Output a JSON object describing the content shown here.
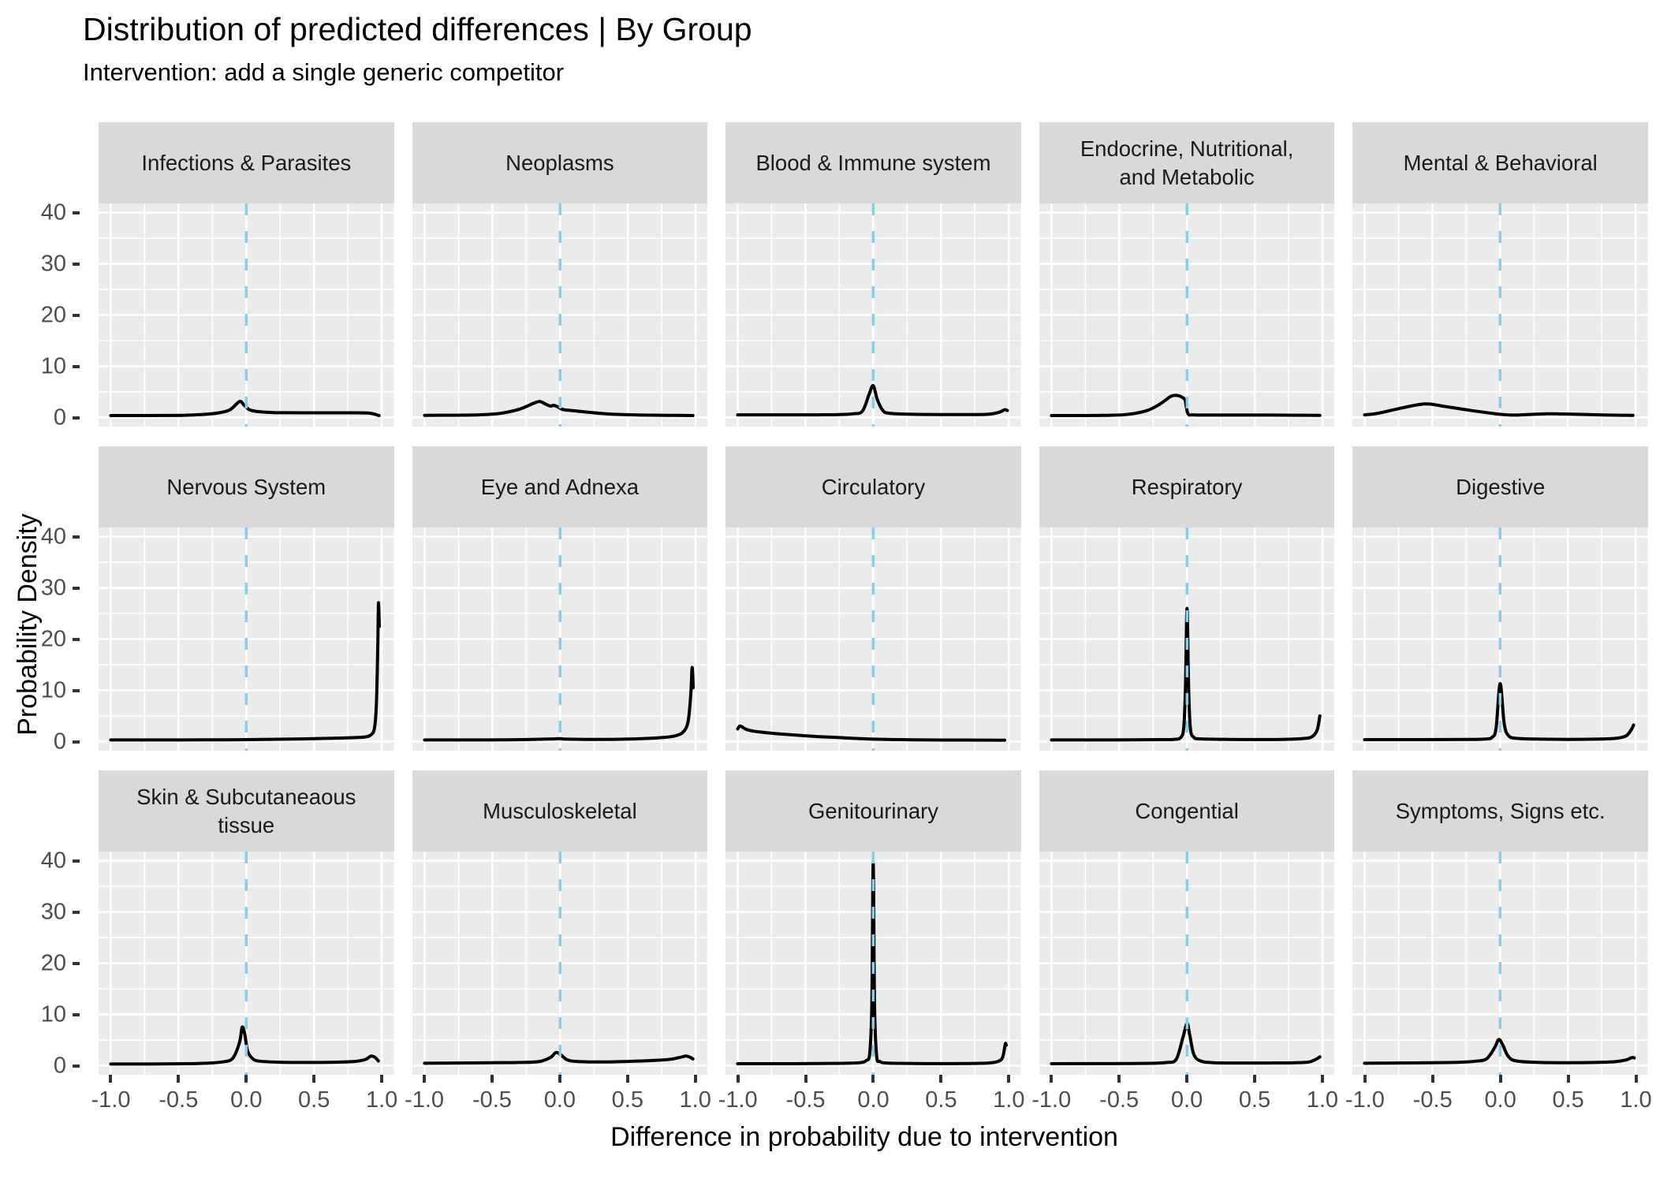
{
  "title": "Distribution of predicted differences | By Group",
  "subtitle": "Intervention: add a single generic competitor",
  "chart_data": {
    "type": "line",
    "title": "Distribution of predicted differences | By Group",
    "subtitle": "Intervention: add a single generic competitor",
    "xlabel": "Difference in probability due to intervention",
    "ylabel": "Probability Density",
    "panels_per_row": 5,
    "x_ticks": [
      "-1.0",
      "-0.5",
      "0.0",
      "0.5",
      "1.0"
    ],
    "x_tick_values": [
      -1.0,
      -0.5,
      0.0,
      0.5,
      1.0
    ],
    "y_ticks": [
      "0",
      "10",
      "20",
      "30",
      "40"
    ],
    "y_tick_values": [
      0,
      10,
      20,
      30,
      40
    ],
    "xlim": [
      -1.09,
      1.09
    ],
    "ylim": [
      -1.8,
      41.8
    ],
    "grid": true,
    "x_minor": [
      -0.75,
      -0.25,
      0.25,
      0.75
    ],
    "y_minor": [
      5,
      15,
      25,
      35
    ],
    "reference_line_x": 0,
    "legend": "none",
    "colors": {
      "density_line": "#000000",
      "reference_line": "#87CEEB",
      "panel_bg": "#EBEBEB",
      "strip_bg": "#D9D9D9",
      "gridline": "#FFFFFF",
      "axis_text": "#4D4D4D",
      "tick_mark": "#333333"
    },
    "facets": [
      {
        "label": "Infections & Parasites",
        "points": [
          [
            -1,
            0.35
          ],
          [
            -0.8,
            0.35
          ],
          [
            -0.6,
            0.38
          ],
          [
            -0.45,
            0.42
          ],
          [
            -0.3,
            0.6
          ],
          [
            -0.2,
            0.9
          ],
          [
            -0.12,
            1.5
          ],
          [
            -0.05,
            3.1
          ],
          [
            -0.02,
            2.5
          ],
          [
            0.02,
            1.55
          ],
          [
            0.08,
            1.15
          ],
          [
            0.2,
            0.95
          ],
          [
            0.4,
            0.9
          ],
          [
            0.6,
            0.9
          ],
          [
            0.8,
            0.9
          ],
          [
            0.9,
            0.85
          ],
          [
            0.95,
            0.6
          ],
          [
            0.98,
            0.35
          ]
        ]
      },
      {
        "label": "Neoplasms",
        "points": [
          [
            -1,
            0.4
          ],
          [
            -0.8,
            0.42
          ],
          [
            -0.6,
            0.5
          ],
          [
            -0.45,
            0.75
          ],
          [
            -0.3,
            1.6
          ],
          [
            -0.2,
            2.7
          ],
          [
            -0.15,
            3.1
          ],
          [
            -0.1,
            2.5
          ],
          [
            -0.07,
            2.2
          ],
          [
            -0.05,
            2.35
          ],
          [
            -0.02,
            2.1
          ],
          [
            0.02,
            1.55
          ],
          [
            0.1,
            1.3
          ],
          [
            0.25,
            0.9
          ],
          [
            0.4,
            0.6
          ],
          [
            0.6,
            0.45
          ],
          [
            0.8,
            0.4
          ],
          [
            0.98,
            0.35
          ]
        ]
      },
      {
        "label": "Blood & Immune system",
        "points": [
          [
            -1,
            0.5
          ],
          [
            -0.7,
            0.5
          ],
          [
            -0.4,
            0.5
          ],
          [
            -0.25,
            0.55
          ],
          [
            -0.15,
            0.7
          ],
          [
            -0.08,
            1.2
          ],
          [
            -0.03,
            4.5
          ],
          [
            0,
            6.2
          ],
          [
            0.03,
            3.5
          ],
          [
            0.07,
            1.4
          ],
          [
            0.12,
            0.8
          ],
          [
            0.3,
            0.6
          ],
          [
            0.5,
            0.55
          ],
          [
            0.7,
            0.55
          ],
          [
            0.85,
            0.6
          ],
          [
            0.93,
            1.0
          ],
          [
            0.97,
            1.5
          ],
          [
            0.99,
            1.35
          ]
        ]
      },
      {
        "label": "Endocrine, Nutritional,\nand Metabolic",
        "points": [
          [
            -1,
            0.35
          ],
          [
            -0.8,
            0.35
          ],
          [
            -0.6,
            0.4
          ],
          [
            -0.45,
            0.55
          ],
          [
            -0.3,
            1.3
          ],
          [
            -0.2,
            2.6
          ],
          [
            -0.12,
            4.1
          ],
          [
            -0.08,
            4.3
          ],
          [
            -0.04,
            4.0
          ],
          [
            -0.015,
            3.4
          ],
          [
            -0.005,
            2.0
          ],
          [
            0.01,
            0.6
          ],
          [
            0.05,
            0.48
          ],
          [
            0.2,
            0.45
          ],
          [
            0.5,
            0.45
          ],
          [
            0.8,
            0.42
          ],
          [
            0.98,
            0.4
          ]
        ]
      },
      {
        "label": "Mental & Behavioral",
        "points": [
          [
            -1,
            0.5
          ],
          [
            -0.9,
            0.8
          ],
          [
            -0.75,
            1.7
          ],
          [
            -0.6,
            2.5
          ],
          [
            -0.52,
            2.6
          ],
          [
            -0.4,
            2.1
          ],
          [
            -0.25,
            1.5
          ],
          [
            -0.12,
            1.0
          ],
          [
            0,
            0.6
          ],
          [
            0.1,
            0.45
          ],
          [
            0.25,
            0.6
          ],
          [
            0.35,
            0.7
          ],
          [
            0.5,
            0.65
          ],
          [
            0.65,
            0.55
          ],
          [
            0.8,
            0.45
          ],
          [
            0.98,
            0.4
          ]
        ]
      },
      {
        "label": "Nervous System",
        "points": [
          [
            -1,
            0.3
          ],
          [
            -0.6,
            0.3
          ],
          [
            -0.2,
            0.32
          ],
          [
            0,
            0.35
          ],
          [
            0.3,
            0.45
          ],
          [
            0.6,
            0.6
          ],
          [
            0.8,
            0.75
          ],
          [
            0.88,
            0.9
          ],
          [
            0.92,
            1.3
          ],
          [
            0.945,
            2.5
          ],
          [
            0.96,
            7
          ],
          [
            0.97,
            18
          ],
          [
            0.975,
            26.5
          ],
          [
            0.978,
            26.0
          ],
          [
            0.982,
            22.5
          ]
        ]
      },
      {
        "label": "Eye and Adnexa",
        "points": [
          [
            -1,
            0.3
          ],
          [
            -0.6,
            0.3
          ],
          [
            -0.3,
            0.35
          ],
          [
            -0.05,
            0.5
          ],
          [
            0,
            0.55
          ],
          [
            0.05,
            0.45
          ],
          [
            0.3,
            0.4
          ],
          [
            0.55,
            0.5
          ],
          [
            0.75,
            0.75
          ],
          [
            0.85,
            1.1
          ],
          [
            0.91,
            1.9
          ],
          [
            0.945,
            4
          ],
          [
            0.965,
            9.5
          ],
          [
            0.973,
            14.2
          ],
          [
            0.978,
            13.5
          ],
          [
            0.982,
            10.5
          ]
        ]
      },
      {
        "label": "Circulatory",
        "points": [
          [
            -1,
            2.45
          ],
          [
            -0.985,
            3.0
          ],
          [
            -0.97,
            2.9
          ],
          [
            -0.94,
            2.4
          ],
          [
            -0.88,
            2.0
          ],
          [
            -0.8,
            1.75
          ],
          [
            -0.7,
            1.5
          ],
          [
            -0.55,
            1.2
          ],
          [
            -0.4,
            0.95
          ],
          [
            -0.25,
            0.75
          ],
          [
            -0.1,
            0.55
          ],
          [
            0,
            0.45
          ],
          [
            0.2,
            0.35
          ],
          [
            0.4,
            0.3
          ],
          [
            0.6,
            0.28
          ],
          [
            0.8,
            0.27
          ],
          [
            0.97,
            0.25
          ]
        ]
      },
      {
        "label": "Respiratory",
        "points": [
          [
            -1,
            0.3
          ],
          [
            -0.7,
            0.3
          ],
          [
            -0.4,
            0.32
          ],
          [
            -0.2,
            0.35
          ],
          [
            -0.1,
            0.4
          ],
          [
            -0.05,
            0.7
          ],
          [
            -0.025,
            2.5
          ],
          [
            -0.012,
            10
          ],
          [
            0,
            26
          ],
          [
            0.012,
            10
          ],
          [
            0.025,
            2.5
          ],
          [
            0.05,
            0.8
          ],
          [
            0.1,
            0.5
          ],
          [
            0.3,
            0.4
          ],
          [
            0.5,
            0.38
          ],
          [
            0.7,
            0.4
          ],
          [
            0.85,
            0.55
          ],
          [
            0.92,
            0.9
          ],
          [
            0.96,
            2.2
          ],
          [
            0.98,
            5.0
          ]
        ]
      },
      {
        "label": "Digestive",
        "points": [
          [
            -1,
            0.35
          ],
          [
            -0.7,
            0.35
          ],
          [
            -0.4,
            0.38
          ],
          [
            -0.2,
            0.4
          ],
          [
            -0.1,
            0.5
          ],
          [
            -0.06,
            0.8
          ],
          [
            -0.03,
            2.5
          ],
          [
            0,
            11.3
          ],
          [
            0.03,
            3.5
          ],
          [
            0.06,
            1.2
          ],
          [
            0.12,
            0.6
          ],
          [
            0.3,
            0.45
          ],
          [
            0.5,
            0.4
          ],
          [
            0.7,
            0.45
          ],
          [
            0.85,
            0.6
          ],
          [
            0.93,
            1.1
          ],
          [
            0.97,
            2.4
          ],
          [
            0.985,
            3.2
          ]
        ]
      },
      {
        "label": "Skin & Subcutaneaous\ntissue",
        "points": [
          [
            -1,
            0.3
          ],
          [
            -0.7,
            0.3
          ],
          [
            -0.45,
            0.35
          ],
          [
            -0.3,
            0.45
          ],
          [
            -0.18,
            0.7
          ],
          [
            -0.1,
            1.4
          ],
          [
            -0.05,
            4.5
          ],
          [
            -0.03,
            7.5
          ],
          [
            -0.01,
            6.0
          ],
          [
            0.01,
            2.8
          ],
          [
            0.05,
            1.3
          ],
          [
            0.1,
            0.85
          ],
          [
            0.25,
            0.65
          ],
          [
            0.45,
            0.6
          ],
          [
            0.65,
            0.65
          ],
          [
            0.8,
            0.8
          ],
          [
            0.88,
            1.2
          ],
          [
            0.92,
            1.85
          ],
          [
            0.95,
            1.6
          ],
          [
            0.975,
            0.9
          ]
        ]
      },
      {
        "label": "Musculoskeletal",
        "points": [
          [
            -1,
            0.45
          ],
          [
            -0.75,
            0.5
          ],
          [
            -0.5,
            0.55
          ],
          [
            -0.3,
            0.6
          ],
          [
            -0.15,
            0.8
          ],
          [
            -0.07,
            1.6
          ],
          [
            -0.03,
            2.55
          ],
          [
            0.01,
            2.0
          ],
          [
            0.05,
            1.15
          ],
          [
            0.12,
            0.8
          ],
          [
            0.3,
            0.7
          ],
          [
            0.5,
            0.8
          ],
          [
            0.7,
            1.0
          ],
          [
            0.82,
            1.25
          ],
          [
            0.9,
            1.7
          ],
          [
            0.93,
            1.85
          ],
          [
            0.96,
            1.6
          ],
          [
            0.98,
            1.3
          ]
        ]
      },
      {
        "label": "Genitourinary",
        "points": [
          [
            -1,
            0.35
          ],
          [
            -0.7,
            0.35
          ],
          [
            -0.4,
            0.4
          ],
          [
            -0.2,
            0.45
          ],
          [
            -0.1,
            0.55
          ],
          [
            -0.05,
            1.0
          ],
          [
            -0.025,
            2.5
          ],
          [
            -0.01,
            12
          ],
          [
            0,
            39.5
          ],
          [
            0.01,
            12
          ],
          [
            0.025,
            2.0
          ],
          [
            0.05,
            0.8
          ],
          [
            0.1,
            0.5
          ],
          [
            0.3,
            0.4
          ],
          [
            0.5,
            0.38
          ],
          [
            0.7,
            0.4
          ],
          [
            0.85,
            0.5
          ],
          [
            0.92,
            0.8
          ],
          [
            0.955,
            1.6
          ],
          [
            0.975,
            4.2
          ],
          [
            0.982,
            4.0
          ]
        ]
      },
      {
        "label": "Congential",
        "points": [
          [
            -1,
            0.35
          ],
          [
            -0.7,
            0.38
          ],
          [
            -0.4,
            0.4
          ],
          [
            -0.25,
            0.45
          ],
          [
            -0.15,
            0.6
          ],
          [
            -0.08,
            1.2
          ],
          [
            -0.03,
            5.5
          ],
          [
            0,
            8.2
          ],
          [
            0.02,
            6.0
          ],
          [
            0.05,
            2.2
          ],
          [
            0.1,
            0.9
          ],
          [
            0.2,
            0.55
          ],
          [
            0.4,
            0.5
          ],
          [
            0.6,
            0.5
          ],
          [
            0.8,
            0.55
          ],
          [
            0.9,
            0.7
          ],
          [
            0.95,
            1.2
          ],
          [
            0.98,
            1.7
          ]
        ]
      },
      {
        "label": "Symptoms, Signs etc.",
        "points": [
          [
            -1,
            0.45
          ],
          [
            -0.75,
            0.5
          ],
          [
            -0.5,
            0.55
          ],
          [
            -0.3,
            0.65
          ],
          [
            -0.18,
            0.85
          ],
          [
            -0.1,
            1.3
          ],
          [
            -0.04,
            3.5
          ],
          [
            -0.01,
            5.1
          ],
          [
            0.02,
            4.0
          ],
          [
            0.06,
            1.8
          ],
          [
            0.12,
            0.9
          ],
          [
            0.3,
            0.6
          ],
          [
            0.5,
            0.55
          ],
          [
            0.7,
            0.6
          ],
          [
            0.85,
            0.75
          ],
          [
            0.93,
            1.1
          ],
          [
            0.97,
            1.55
          ],
          [
            0.99,
            1.5
          ]
        ]
      }
    ]
  }
}
